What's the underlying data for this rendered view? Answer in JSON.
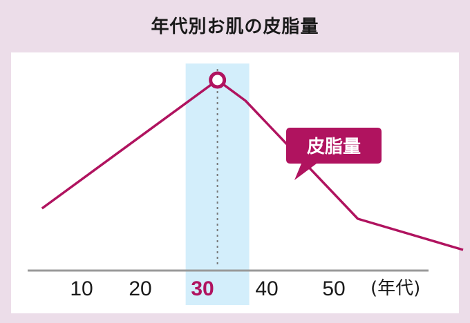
{
  "title": "年代別お肌の皮脂量",
  "colors": {
    "accent": "#b0135f",
    "highlight": "#d3eefb",
    "axis": "#999999",
    "background": "#ecdde9"
  },
  "chart_data": {
    "type": "line",
    "title": "年代別お肌の皮脂量",
    "x_tick_labels": [
      "10",
      "20",
      "30",
      "40",
      "50"
    ],
    "x_unit": "(年代)",
    "highlight_category": "30",
    "y_ticks_shown": false,
    "grid": false,
    "series": [
      {
        "name": "皮脂量",
        "x": [
          5,
          30,
          34,
          50,
          65
        ],
        "y": [
          0.3,
          0.92,
          0.82,
          0.25,
          0.1
        ],
        "peak_x": 30
      }
    ],
    "xlim": [
      0,
      65
    ],
    "ylim": [
      0,
      1
    ],
    "annotations": [
      {
        "text": "皮脂量"
      }
    ]
  }
}
